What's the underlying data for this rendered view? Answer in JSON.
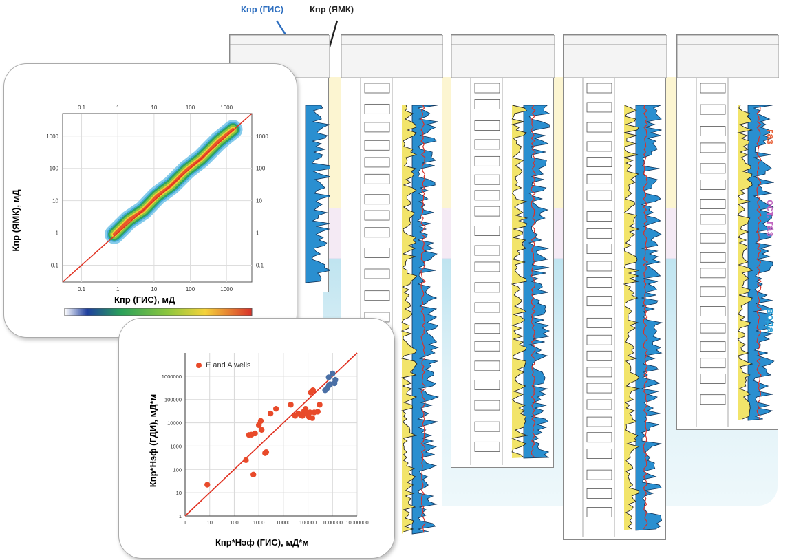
{
  "labels": {
    "kpr_gis_top": "Кпр (ГИС)",
    "kpr_yamk_top": "Кпр (ЯМК)"
  },
  "zones": [
    {
      "name": "газ",
      "color": "#e8643c"
    },
    {
      "name": "ост. газ",
      "color": "#c065c0"
    },
    {
      "name": "вода",
      "color": "#2a9fd6"
    }
  ],
  "colors": {
    "gis_arrow": "#2e6fc0",
    "yamk_arrow": "#222222",
    "diag": "#e03020",
    "points": "#e84a2a",
    "points_blue": "#4a6fa5"
  },
  "chart_data": [
    {
      "type": "heatmap",
      "xlabel": "Кпр (ГИС), мД",
      "ylabel": "Кпр (ЯМК), мД",
      "xscale": "log",
      "yscale": "log",
      "xticks": [
        "0.1",
        "1",
        "10",
        "100",
        "1000"
      ],
      "yticks": [
        "0.1",
        "1",
        "10",
        "100",
        "1000"
      ],
      "xlim": [
        0.03,
        5000
      ],
      "ylim": [
        0.03,
        5000
      ],
      "diagonal": true,
      "density_ridge": [
        [
          0.8,
          0.9
        ],
        [
          2,
          2.5
        ],
        [
          5,
          5
        ],
        [
          12,
          14
        ],
        [
          30,
          30
        ],
        [
          80,
          90
        ],
        [
          200,
          200
        ],
        [
          600,
          700
        ],
        [
          1500,
          1600
        ]
      ]
    },
    {
      "type": "scatter",
      "xlabel": "Кпр*Нэф (ГИС), мД*м",
      "ylabel": "Кпр*Нэф (ГДИ), мД*м",
      "xscale": "log",
      "yscale": "log",
      "xticks": [
        "1",
        "10",
        "100",
        "1000",
        "10000",
        "100000",
        "1000000",
        "10000000"
      ],
      "yticks": [
        "1",
        "10",
        "100",
        "1000",
        "10000",
        "100000",
        "1000000"
      ],
      "xlim": [
        1,
        10000000
      ],
      "ylim": [
        1,
        10000000
      ],
      "diagonal": true,
      "series": [
        {
          "name": "E and A wells",
          "color": "#e84a2a",
          "points": [
            [
              8,
              22
            ],
            [
              300,
              250
            ],
            [
              400,
              3000
            ],
            [
              500,
              3100
            ],
            [
              600,
              60
            ],
            [
              700,
              3500
            ],
            [
              1000,
              8000
            ],
            [
              1200,
              12000
            ],
            [
              1300,
              5000
            ],
            [
              1800,
              500
            ],
            [
              2000,
              550
            ],
            [
              3000,
              25000
            ],
            [
              5000,
              40000
            ],
            [
              20000,
              60000
            ],
            [
              30000,
              20000
            ],
            [
              40000,
              25000
            ],
            [
              50000,
              22000
            ],
            [
              60000,
              20000
            ],
            [
              70000,
              32000
            ],
            [
              80000,
              40000
            ],
            [
              90000,
              25000
            ],
            [
              100000,
              22000
            ],
            [
              110000,
              18000
            ],
            [
              120000,
              28000
            ],
            [
              130000,
              200000
            ],
            [
              150000,
              16000
            ],
            [
              160000,
              250000
            ],
            [
              180000,
              28000
            ],
            [
              250000,
              30000
            ],
            [
              300000,
              60000
            ]
          ]
        },
        {
          "name": "",
          "color": "#4a6fa5",
          "points": [
            [
              500000,
              250000
            ],
            [
              600000,
              300000
            ],
            [
              700000,
              900000
            ],
            [
              800000,
              450000
            ],
            [
              1000000,
              1300000
            ],
            [
              1200000,
              500000
            ],
            [
              1300000,
              700000
            ],
            [
              700000,
              400000
            ]
          ]
        }
      ]
    }
  ]
}
